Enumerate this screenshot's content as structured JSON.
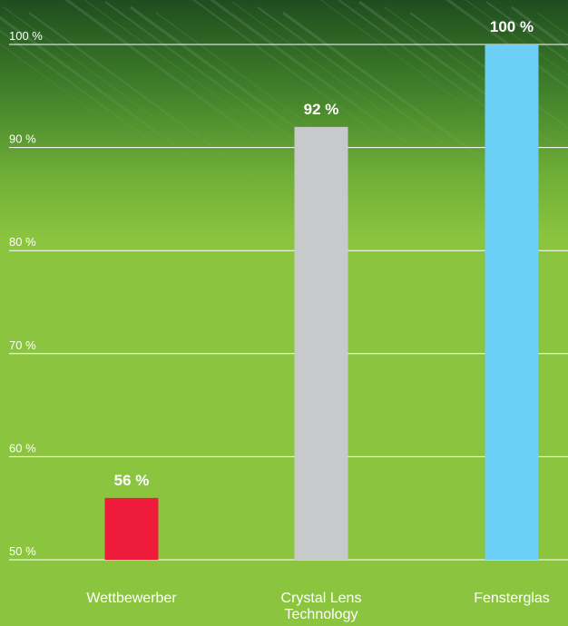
{
  "chart_data": {
    "type": "bar",
    "categories": [
      "Wettbewerber",
      "Crystal Lens Technology",
      "Fensterglas"
    ],
    "category_lines": [
      [
        "Wettbewerber"
      ],
      [
        "Crystal Lens",
        "Technology"
      ],
      [
        "Fensterglas"
      ]
    ],
    "values": [
      56,
      92,
      100
    ],
    "value_labels": [
      "56 %",
      "92 %",
      "100 %"
    ],
    "ylim": [
      50,
      100
    ],
    "y_ticks": [
      50,
      60,
      70,
      80,
      90,
      100
    ],
    "y_tick_labels": [
      "50 %",
      "60 %",
      "70 %",
      "80 %",
      "90 %",
      "100 %"
    ],
    "grid": true,
    "colors": {
      "bars": [
        "#ee1c3a",
        "#c8c9ca",
        "#6ccff6"
      ],
      "background": "#8bc53f",
      "background_top": "#1f4d1f",
      "gridline": "#ffffff",
      "text": "#ffffff"
    }
  }
}
